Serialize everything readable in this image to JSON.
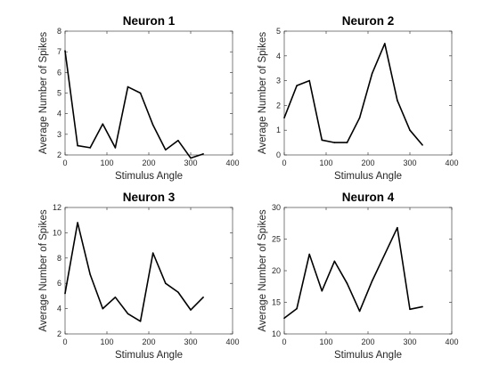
{
  "chart_data": [
    {
      "type": "line",
      "title": "Neuron 1",
      "xlabel": "Stimulus Angle",
      "ylabel": "Average Number of Spikes",
      "xlim": [
        0,
        400
      ],
      "ylim": [
        2,
        8
      ],
      "xticks": [
        0,
        100,
        200,
        300,
        400
      ],
      "yticks": [
        2,
        3,
        4,
        5,
        6,
        7,
        8
      ],
      "grid": false,
      "x": [
        0,
        30,
        60,
        90,
        120,
        150,
        180,
        210,
        240,
        270,
        300,
        330
      ],
      "values": [
        7.05,
        2.45,
        2.35,
        3.5,
        2.35,
        5.3,
        5.0,
        3.45,
        2.25,
        2.7,
        1.85,
        2.05
      ]
    },
    {
      "type": "line",
      "title": "Neuron 2",
      "xlabel": "Stimulus Angle",
      "ylabel": "Average Number of Spikes",
      "xlim": [
        0,
        400
      ],
      "ylim": [
        0,
        5
      ],
      "xticks": [
        0,
        100,
        200,
        300,
        400
      ],
      "yticks": [
        0,
        1,
        2,
        3,
        4,
        5
      ],
      "grid": false,
      "x": [
        0,
        30,
        60,
        90,
        120,
        150,
        180,
        210,
        240,
        270,
        300,
        330
      ],
      "values": [
        1.5,
        2.8,
        3.0,
        0.6,
        0.5,
        0.5,
        1.5,
        3.3,
        4.5,
        2.2,
        1.0,
        0.4
      ]
    },
    {
      "type": "line",
      "title": "Neuron 3",
      "xlabel": "Stimulus Angle",
      "ylabel": "Average Number of Spikes",
      "xlim": [
        0,
        400
      ],
      "ylim": [
        2,
        12
      ],
      "xticks": [
        0,
        100,
        200,
        300,
        400
      ],
      "yticks": [
        2,
        4,
        6,
        8,
        10,
        12
      ],
      "grid": false,
      "x": [
        0,
        30,
        60,
        90,
        120,
        150,
        180,
        210,
        240,
        270,
        300,
        330
      ],
      "values": [
        5.2,
        10.8,
        6.7,
        4.0,
        4.9,
        3.6,
        3.0,
        8.4,
        6.0,
        5.3,
        3.9,
        4.9
      ]
    },
    {
      "type": "line",
      "title": "Neuron 4",
      "xlabel": "Stimulus Angle",
      "ylabel": "Average Number of Spikes",
      "xlim": [
        0,
        400
      ],
      "ylim": [
        10,
        30
      ],
      "xticks": [
        0,
        100,
        200,
        300,
        400
      ],
      "yticks": [
        10,
        15,
        20,
        25,
        30
      ],
      "grid": false,
      "x": [
        0,
        30,
        60,
        90,
        120,
        150,
        180,
        210,
        240,
        270,
        300,
        330
      ],
      "values": [
        12.5,
        14.0,
        22.6,
        16.8,
        21.5,
        18.0,
        13.6,
        18.4,
        22.6,
        26.8,
        13.9,
        14.3
      ]
    }
  ]
}
